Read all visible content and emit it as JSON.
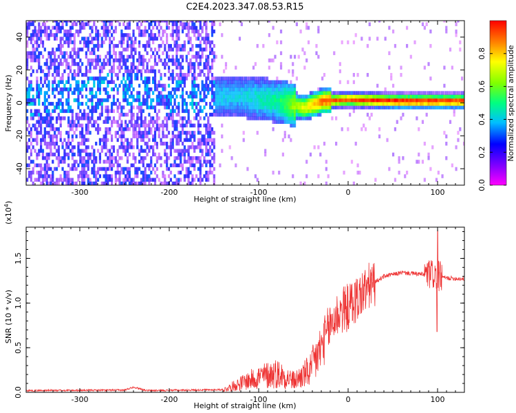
{
  "title": "C2E4.2023.347.08.53.R15",
  "chart_data": [
    {
      "type": "heatmap",
      "title": "C2E4.2023.347.08.53.R15",
      "xlabel": "Height of straight line (km)",
      "ylabel": "Frequency (Hz)",
      "xlim": [
        -360,
        130
      ],
      "ylim": [
        -50,
        50
      ],
      "xticks": [
        -300,
        -200,
        -100,
        0,
        100
      ],
      "yticks": [
        -40,
        -20,
        0,
        20,
        40
      ],
      "colorbar": {
        "label": "Normalized spectral amplitude",
        "range": [
          0,
          1
        ],
        "ticks": [
          0.0,
          0.2,
          0.4,
          0.6,
          0.8
        ],
        "colors": [
          "#ff00ff",
          "#7f00ff",
          "#0000ff",
          "#00bfff",
          "#00ff80",
          "#80ff00",
          "#ffff00",
          "#ff8000",
          "#ff0000"
        ]
      },
      "ridge": [
        {
          "x": -360,
          "y": 0,
          "amp": 0.15
        },
        {
          "x": -250,
          "y": 8,
          "amp": 0.3
        },
        {
          "x": -190,
          "y": 3,
          "amp": 0.35
        },
        {
          "x": -120,
          "y": 3,
          "amp": 0.35
        },
        {
          "x": -80,
          "y": 0,
          "amp": 0.45
        },
        {
          "x": -50,
          "y": -4,
          "amp": 0.7
        },
        {
          "x": -30,
          "y": 0,
          "amp": 0.85
        },
        {
          "x": 0,
          "y": 1,
          "amp": 0.9
        },
        {
          "x": 50,
          "y": 0,
          "amp": 0.95
        },
        {
          "x": 130,
          "y": 0,
          "amp": 0.9
        }
      ]
    },
    {
      "type": "line",
      "xlabel": "Height of straight line (km)",
      "ylabel": "SNR (10 * v/v)",
      "exponent_label": "(x10",
      "exponent_power": "4",
      "exponent_close": ")",
      "xlim": [
        -360,
        130
      ],
      "ylim": [
        0,
        1.85
      ],
      "xticks": [
        -300,
        -200,
        -100,
        0,
        100
      ],
      "yticks": [
        0.0,
        0.5,
        1.0,
        1.5
      ],
      "series_color": "#ee3333",
      "envelope": [
        {
          "x": -360,
          "y": 0.02
        },
        {
          "x": -250,
          "y": 0.025
        },
        {
          "x": -240,
          "y": 0.06
        },
        {
          "x": -225,
          "y": 0.02
        },
        {
          "x": -140,
          "y": 0.03
        },
        {
          "x": -120,
          "y": 0.12
        },
        {
          "x": -100,
          "y": 0.2
        },
        {
          "x": -80,
          "y": 0.25
        },
        {
          "x": -60,
          "y": 0.15
        },
        {
          "x": -40,
          "y": 0.3
        },
        {
          "x": -30,
          "y": 0.5
        },
        {
          "x": -20,
          "y": 0.75
        },
        {
          "x": -10,
          "y": 0.9
        },
        {
          "x": 0,
          "y": 0.95
        },
        {
          "x": 10,
          "y": 1.05
        },
        {
          "x": 25,
          "y": 1.2
        },
        {
          "x": 40,
          "y": 1.3
        },
        {
          "x": 60,
          "y": 1.34
        },
        {
          "x": 85,
          "y": 1.32
        },
        {
          "x": 95,
          "y": 1.32
        },
        {
          "x": 100,
          "y": 1.3
        },
        {
          "x": 110,
          "y": 1.28
        },
        {
          "x": 130,
          "y": 1.27
        }
      ],
      "peak": {
        "x": 100,
        "y": 1.82
      }
    }
  ]
}
